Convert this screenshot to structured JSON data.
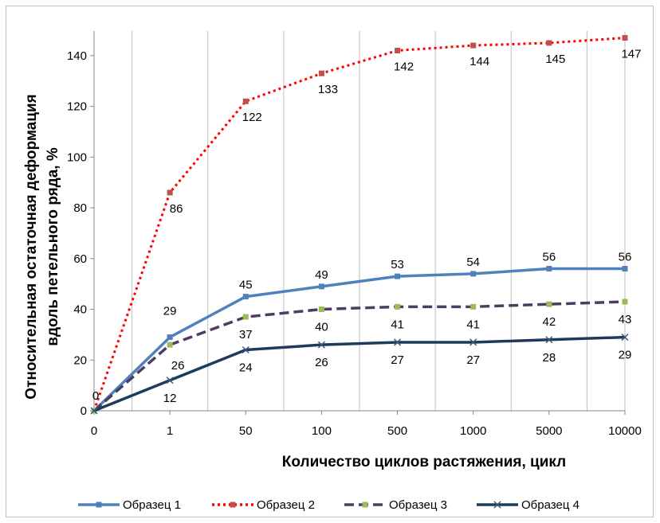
{
  "chart_data": {
    "type": "line",
    "categories": [
      "0",
      "1",
      "50",
      "100",
      "500",
      "1000",
      "5000",
      "10000"
    ],
    "xlabel": "Количество циклов растяжения, цикл",
    "ylabel_line1": "Относительная остаточная деформация",
    "ylabel_line2": "вдоль петельного ряда, %",
    "ylim": [
      0,
      150
    ],
    "yticks": [
      0,
      20,
      40,
      60,
      80,
      100,
      120,
      140
    ],
    "grid": "vertical",
    "legend_position": "bottom",
    "series": [
      {
        "name": "Образец 1",
        "values": [
          0,
          29,
          45,
          49,
          53,
          54,
          56,
          56
        ],
        "color": "#4f81bd",
        "dash": "solid",
        "marker": "square",
        "labels": [
          "",
          "29",
          "45",
          "49",
          "53",
          "54",
          "56",
          "56"
        ]
      },
      {
        "name": "Образец 2",
        "values": [
          0,
          86,
          122,
          133,
          142,
          144,
          145,
          147
        ],
        "color": "#ff0000",
        "dash": "dot",
        "marker": "square",
        "labels": [
          "0",
          "86",
          "122",
          "133",
          "142",
          "144",
          "145",
          "147"
        ]
      },
      {
        "name": "Образец 3",
        "values": [
          0,
          26,
          37,
          40,
          41,
          41,
          42,
          43
        ],
        "color": "#4c3e60",
        "dash": "dash",
        "marker": "circle",
        "labels": [
          "",
          "26",
          "37",
          "40",
          "41",
          "41",
          "42",
          "43"
        ]
      },
      {
        "name": "Образец 4",
        "values": [
          0,
          12,
          24,
          26,
          27,
          27,
          28,
          29
        ],
        "color": "#1f3b5a",
        "dash": "solid",
        "marker": "x",
        "labels": [
          "",
          "12",
          "24",
          "26",
          "27",
          "27",
          "28",
          "29"
        ]
      }
    ]
  }
}
